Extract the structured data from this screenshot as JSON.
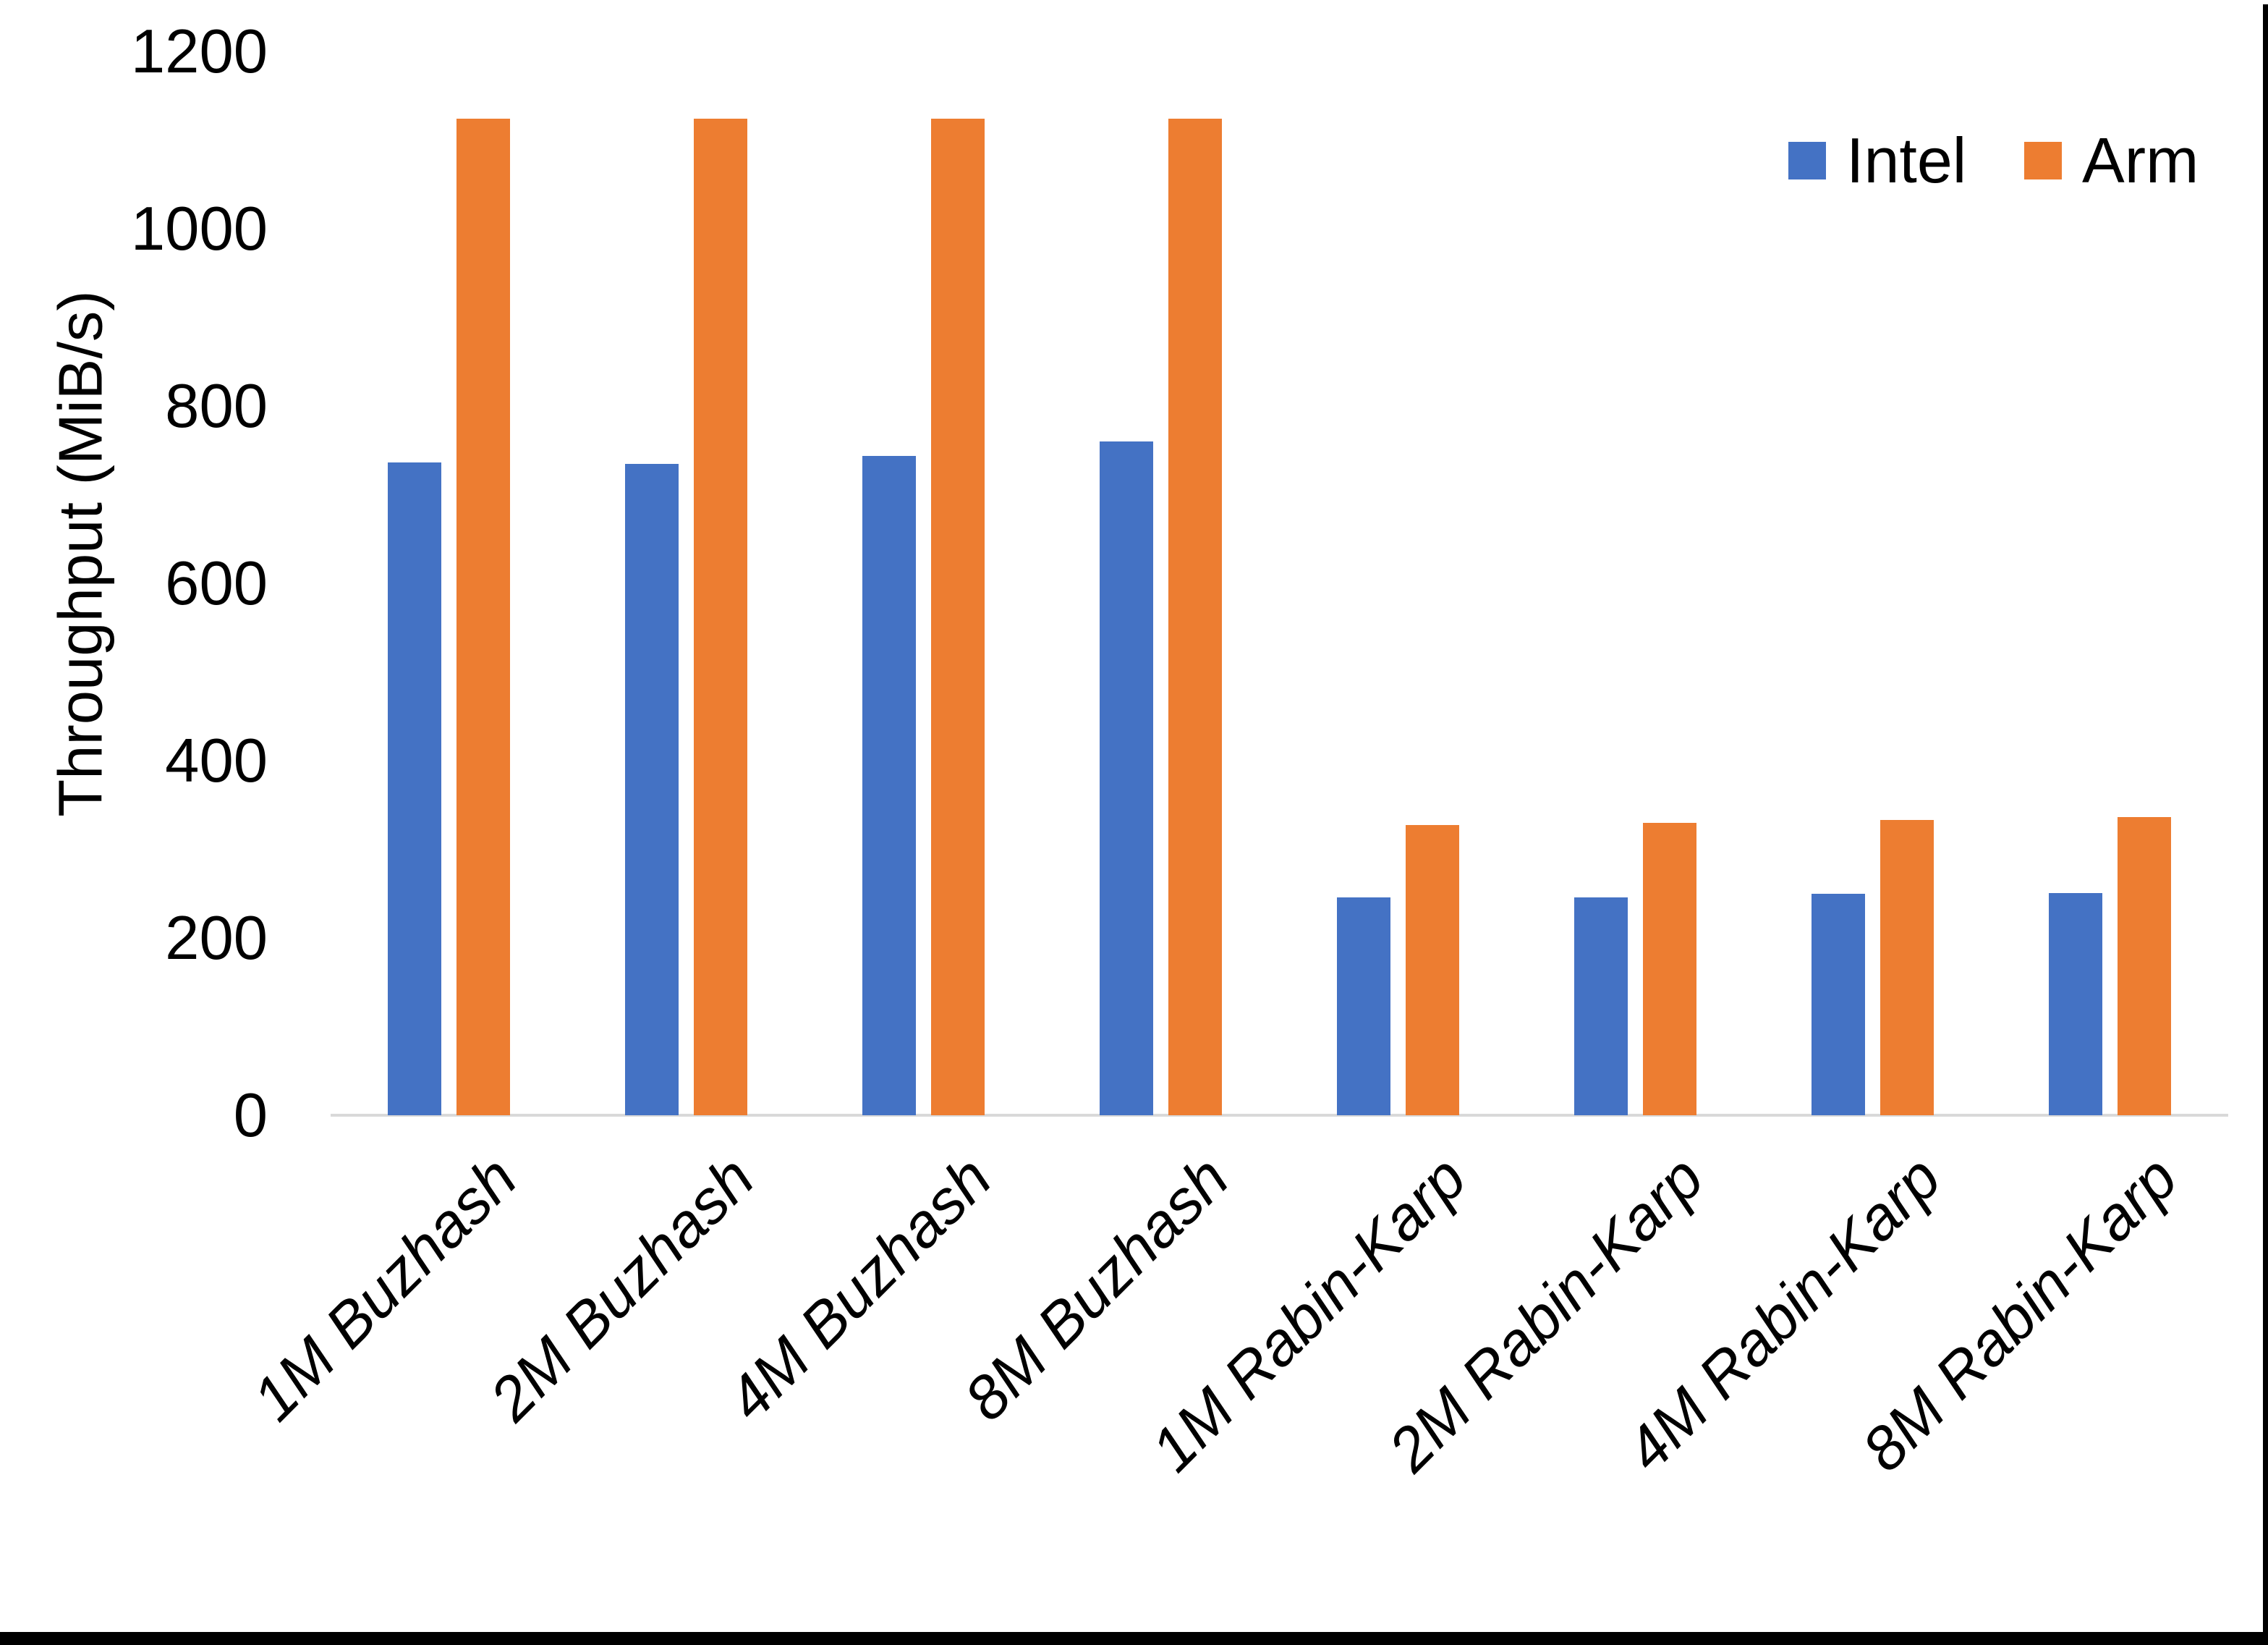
{
  "chart_data": {
    "type": "bar",
    "title": "",
    "xlabel": "",
    "ylabel": "Throughput (MiB/s)",
    "ylim": [
      0,
      1200
    ],
    "ytick_interval": 200,
    "yticks": [
      0,
      200,
      400,
      600,
      800,
      1000,
      1200
    ],
    "grid": false,
    "axis_line_color": "#d9d9d9",
    "legend_position": "top-right",
    "categories": [
      "1M Buzhash",
      "2M Buzhash",
      "4M Buzhash",
      "8M Buzhash",
      "1M Rabin-Karp",
      "2M Rabin-Karp",
      "4M Rabin-Karp",
      "8M Rabin-Karp"
    ],
    "series": [
      {
        "name": "Intel",
        "color": "#4472C4",
        "values": [
          736,
          735,
          744,
          760,
          246,
          246,
          250,
          251
        ]
      },
      {
        "name": "Arm",
        "color": "#ED7D31",
        "values": [
          1124,
          1124,
          1124,
          1124,
          327,
          330,
          333,
          336
        ]
      }
    ]
  }
}
